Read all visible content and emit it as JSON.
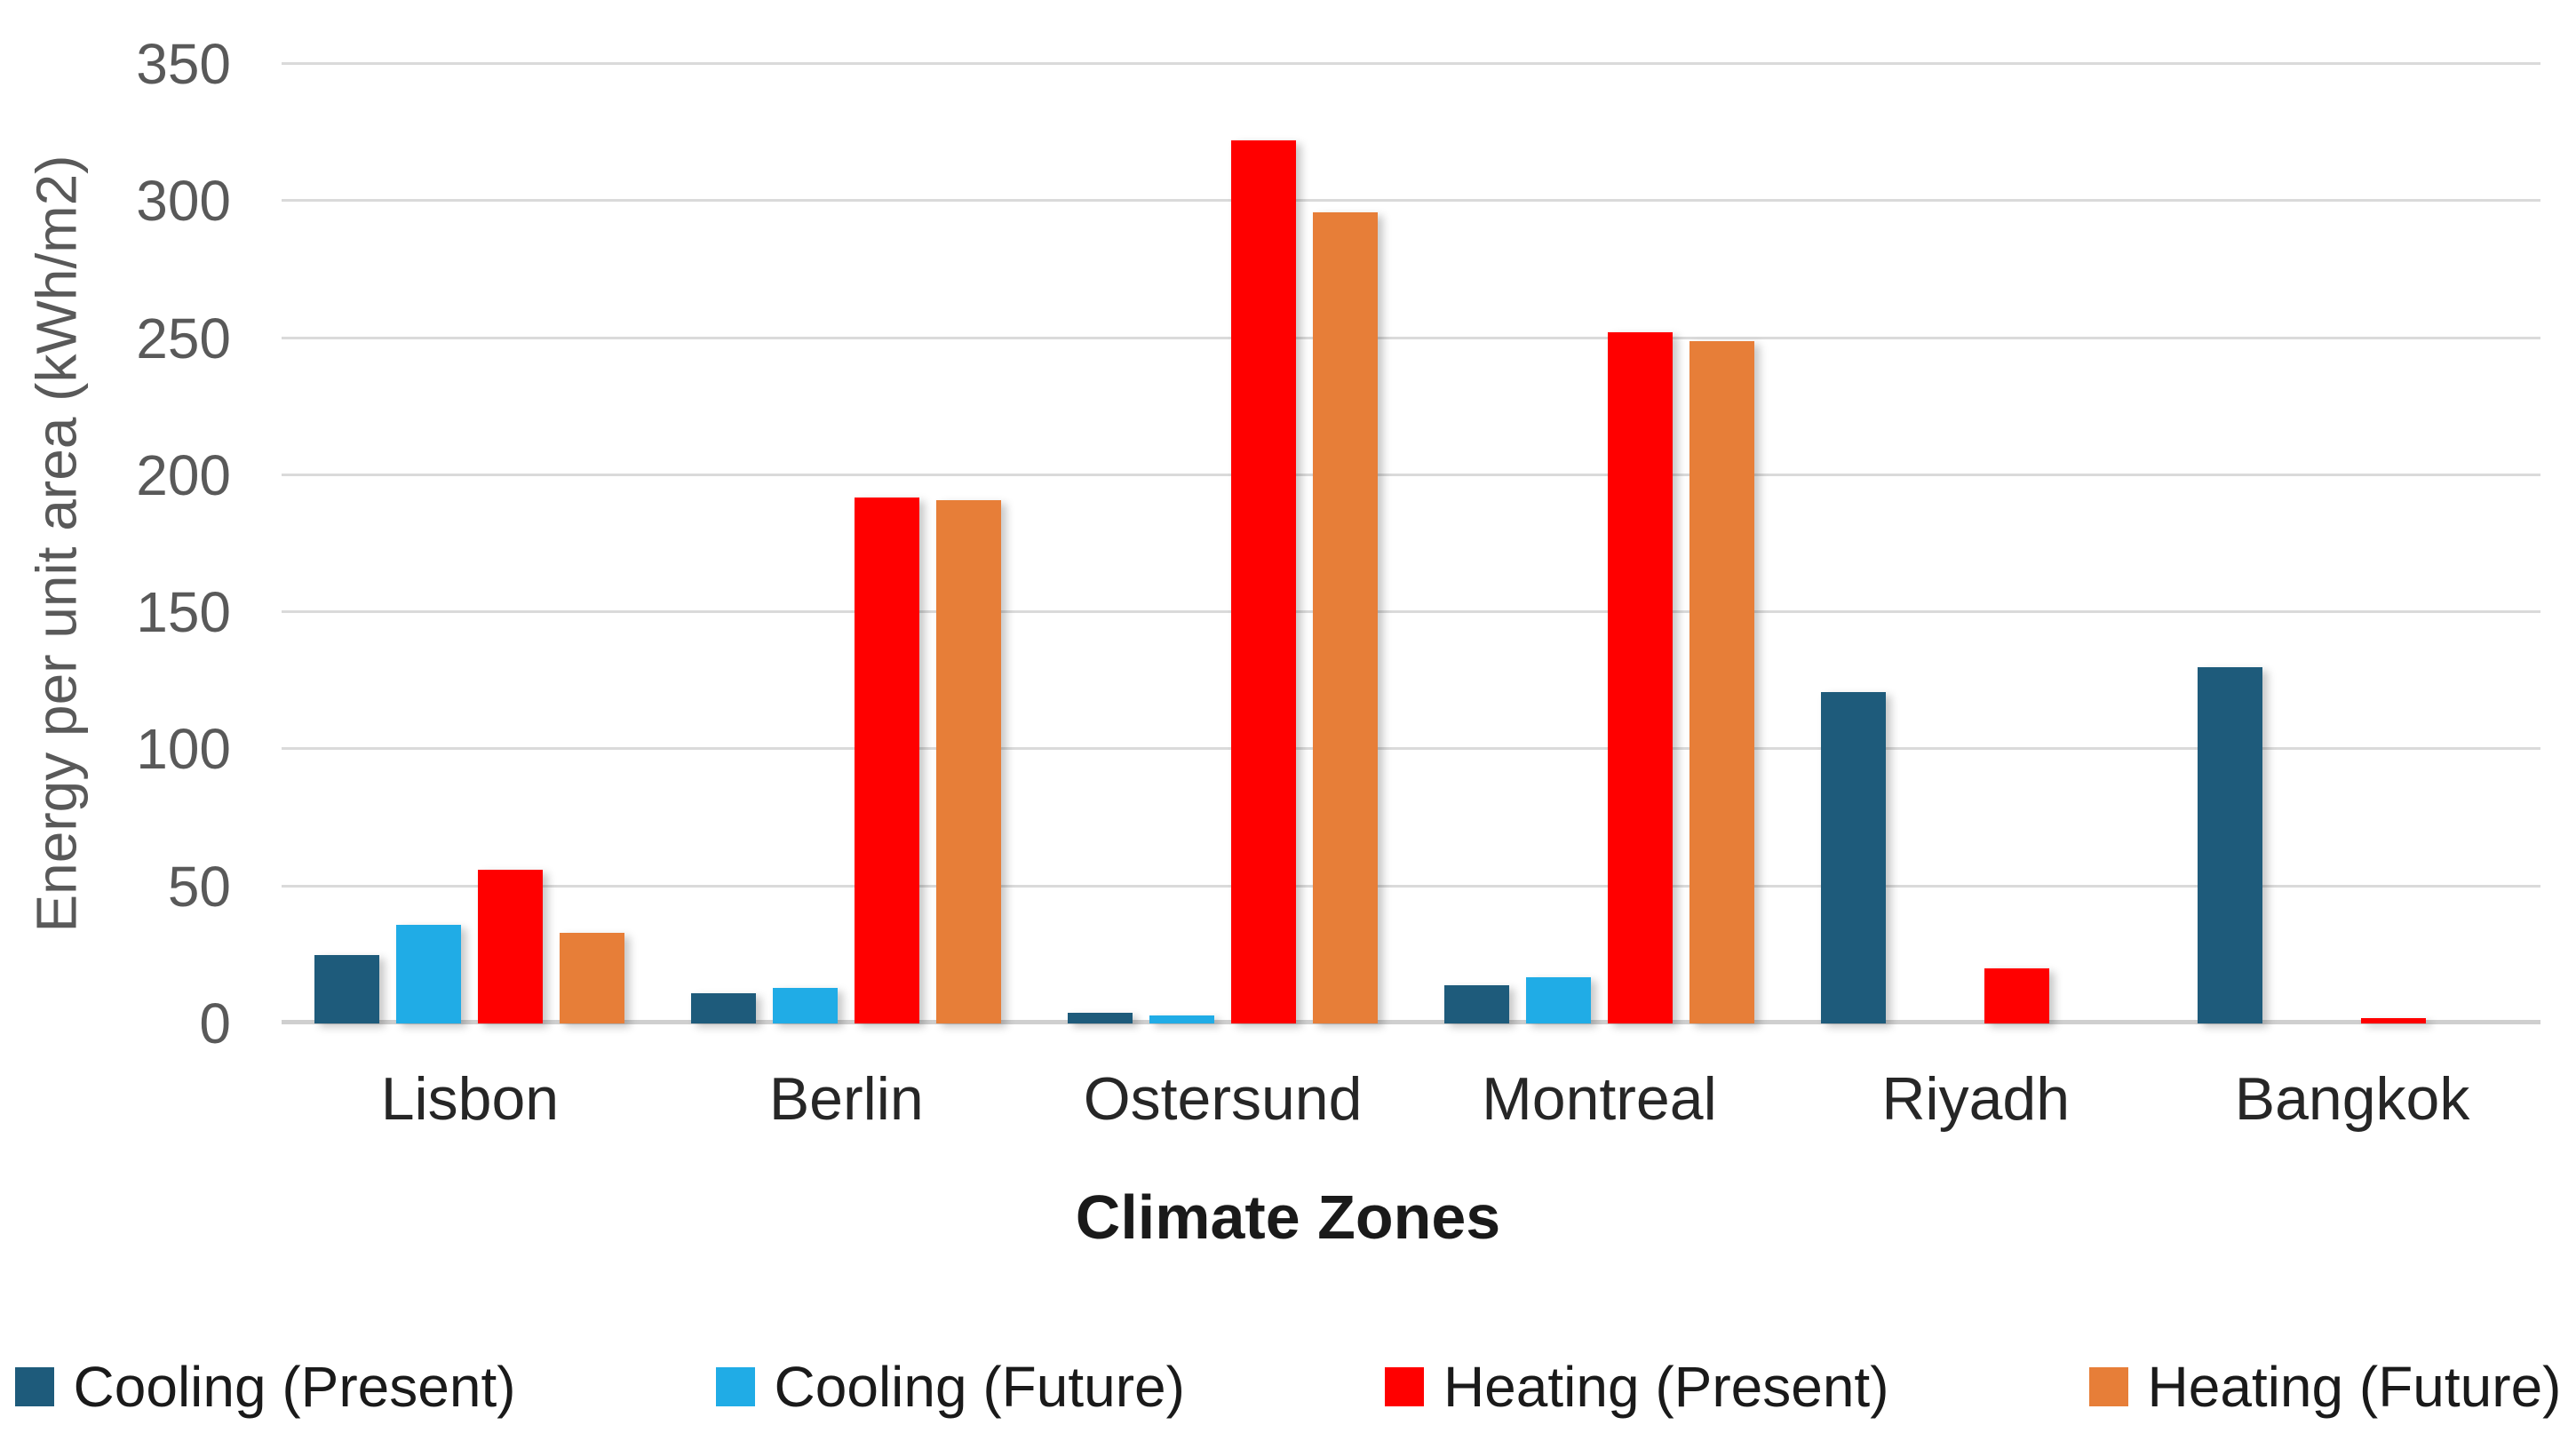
{
  "chart_data": {
    "type": "bar",
    "title": "",
    "categories": [
      "Lisbon",
      "Berlin",
      "Ostersund",
      "Montreal",
      "Riyadh",
      "Bangkok"
    ],
    "series": [
      {
        "name": "Cooling (Present)",
        "color": "#1E5B7B",
        "values": [
          25,
          11,
          4,
          14,
          121,
          130
        ]
      },
      {
        "name": "Cooling (Future)",
        "color": "#20ACE6",
        "values": [
          36,
          13,
          3,
          17,
          0,
          0
        ]
      },
      {
        "name": "Heating (Present)",
        "color": "#FF0000",
        "values": [
          56,
          192,
          322,
          252,
          20,
          2
        ]
      },
      {
        "name": "Heating (Future)",
        "color": "#E77E38",
        "values": [
          33,
          191,
          296,
          249,
          0,
          0
        ]
      }
    ],
    "xlabel": "Climate Zones",
    "ylabel": "Energy per unit area (kWh/m2)",
    "ylim": [
      0,
      350
    ],
    "ytick_step": 50,
    "yticks": [
      0,
      50,
      100,
      150,
      200,
      250,
      300,
      350
    ],
    "grid": true,
    "gridline_color": "#DADADA",
    "baseline_color": "#CFCFCF",
    "tick_label_color": "#595959",
    "category_label_color": "#262626",
    "legend_position": "bottom"
  }
}
